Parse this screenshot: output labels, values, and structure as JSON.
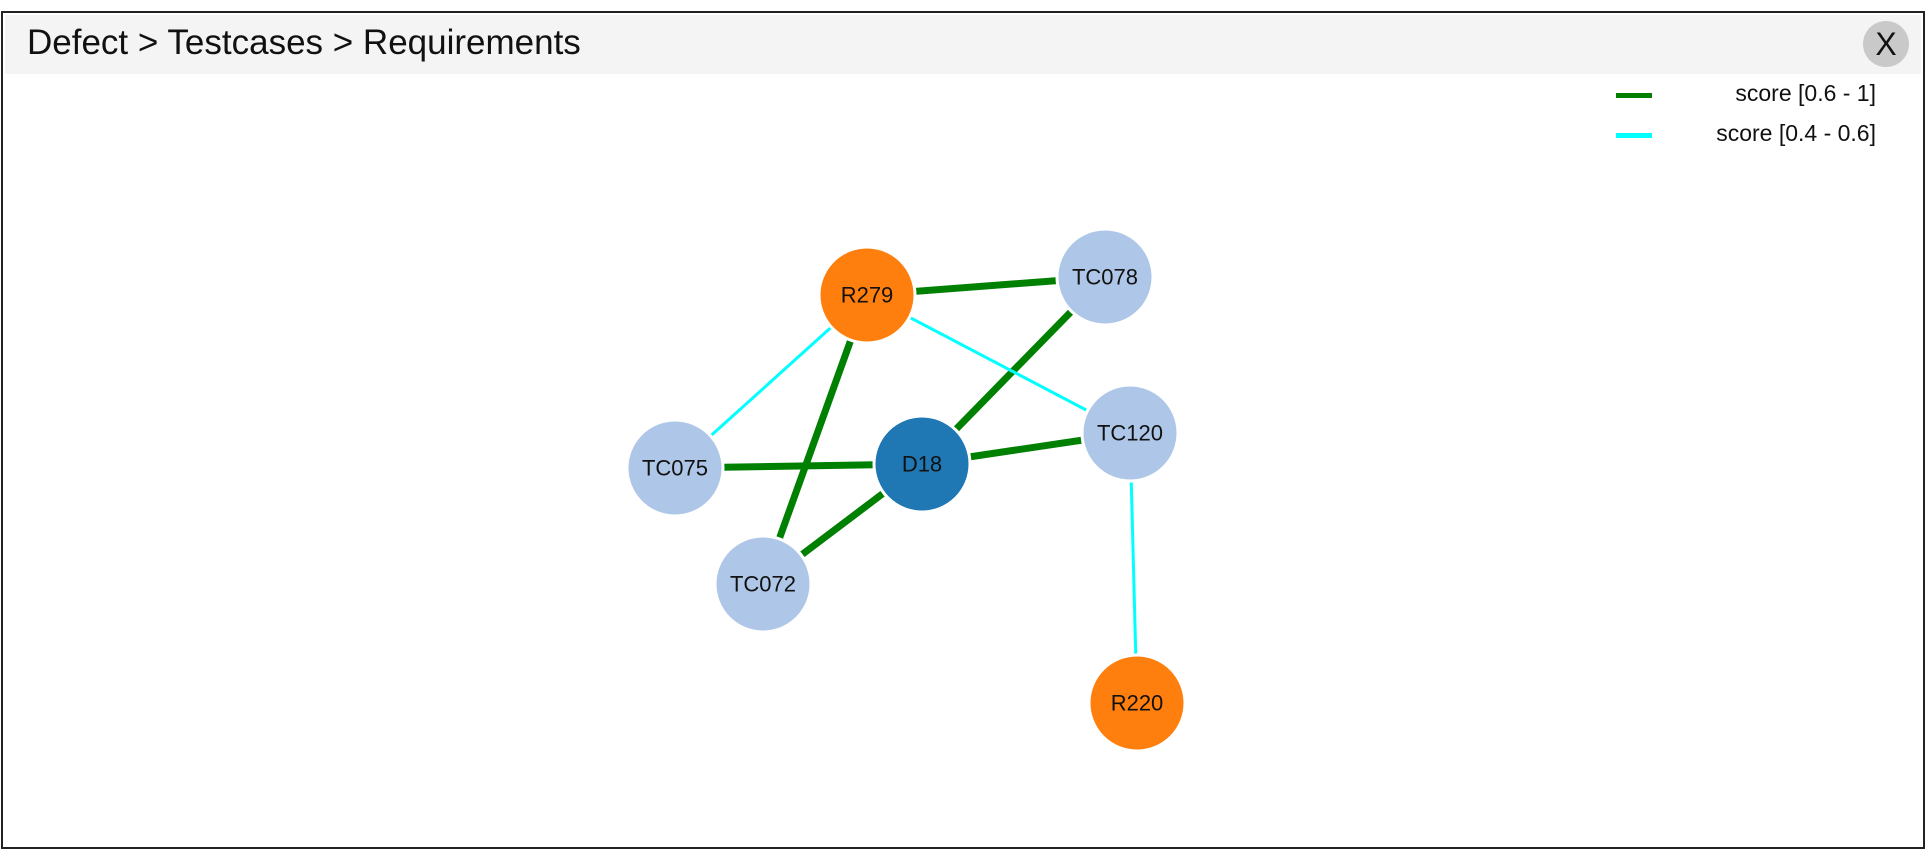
{
  "header": {
    "title": "Defect > Testcases > Requirements",
    "close_label": "X"
  },
  "legend": [
    {
      "label": "score [0.6 - 1]",
      "color": "#008000"
    },
    {
      "label": "score [0.4 - 0.6]",
      "color": "#00ffff"
    }
  ],
  "colors": {
    "defect": "#1f77b4",
    "testcase": "#aec7e8",
    "requirement": "#ff7f0e",
    "high_score": "#008000",
    "mid_score": "#00ffff"
  },
  "graph": {
    "nodes": [
      {
        "id": "D18",
        "label": "D18",
        "type": "defect"
      },
      {
        "id": "R279",
        "label": "R279",
        "type": "requirement"
      },
      {
        "id": "TC078",
        "label": "TC078",
        "type": "testcase"
      },
      {
        "id": "TC120",
        "label": "TC120",
        "type": "testcase"
      },
      {
        "id": "TC075",
        "label": "TC075",
        "type": "testcase"
      },
      {
        "id": "TC072",
        "label": "TC072",
        "type": "testcase"
      },
      {
        "id": "R220",
        "label": "R220",
        "type": "requirement"
      }
    ],
    "edges": [
      {
        "source": "R279",
        "target": "TC078",
        "score_band": "0.6 - 1"
      },
      {
        "source": "R279",
        "target": "TC072",
        "score_band": "0.6 - 1"
      },
      {
        "source": "D18",
        "target": "TC078",
        "score_band": "0.6 - 1"
      },
      {
        "source": "D18",
        "target": "TC120",
        "score_band": "0.6 - 1"
      },
      {
        "source": "D18",
        "target": "TC075",
        "score_band": "0.6 - 1"
      },
      {
        "source": "D18",
        "target": "TC072",
        "score_band": "0.6 - 1"
      },
      {
        "source": "R279",
        "target": "TC075",
        "score_band": "0.4 - 0.6"
      },
      {
        "source": "R279",
        "target": "TC120",
        "score_band": "0.4 - 0.6"
      },
      {
        "source": "TC120",
        "target": "R220",
        "score_band": "0.4 - 0.6"
      }
    ]
  }
}
